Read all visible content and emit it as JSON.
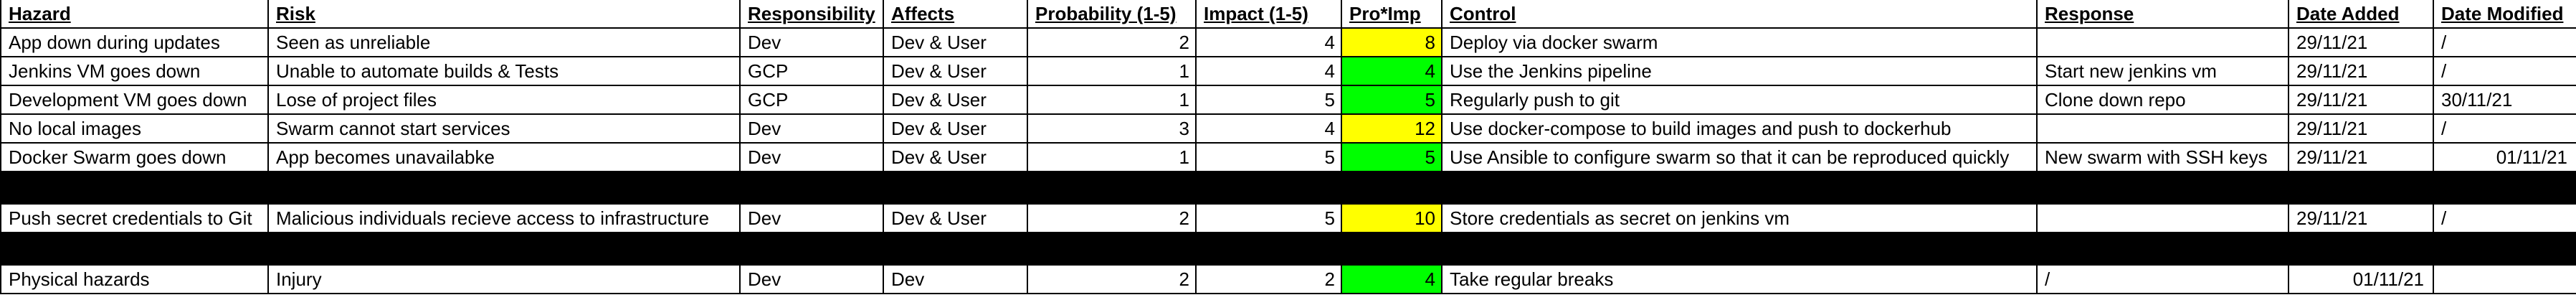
{
  "columns": [
    "Hazard",
    "Risk",
    "Responsibility",
    "Affects",
    "Probability (1-5)",
    "Impact (1-5)",
    "Pro*Imp",
    "Control",
    "Response",
    "Date Added",
    "Date Modified"
  ],
  "rows": [
    {
      "hazard": "App down during updates",
      "risk": "Seen as unreliable",
      "responsibility": "Dev",
      "affects": "Dev & User",
      "probability": "2",
      "impact": "4",
      "score": "8",
      "level": "warn",
      "control": "Deploy via docker swarm",
      "response": "",
      "date_added": "29/11/21",
      "date_modified": "/"
    },
    {
      "hazard": "Jenkins VM goes down",
      "risk": "Unable to automate builds & Tests",
      "responsibility": "GCP",
      "affects": "Dev & User",
      "probability": "1",
      "impact": "4",
      "score": "4",
      "level": "ok",
      "control": "Use the Jenkins pipeline",
      "response": "Start new jenkins vm",
      "date_added": "29/11/21",
      "date_modified": "/"
    },
    {
      "hazard": "Development VM goes down",
      "risk": "Lose of project files",
      "responsibility": "GCP",
      "affects": "Dev & User",
      "probability": "1",
      "impact": "5",
      "score": "5",
      "level": "ok",
      "control": "Regularly push to git",
      "response": "Clone down repo",
      "date_added": "29/11/21",
      "date_modified": "30/11/21"
    },
    {
      "hazard": "No local images",
      "risk": "Swarm cannot start services",
      "responsibility": "Dev",
      "affects": "Dev & User",
      "probability": "3",
      "impact": "4",
      "score": "12",
      "level": "warn",
      "control": "Use docker-compose to build images and push to dockerhub",
      "response": "",
      "date_added": "29/11/21",
      "date_modified": "/"
    },
    {
      "hazard": "Docker Swarm goes down",
      "risk": "App becomes unavailabke",
      "responsibility": "Dev",
      "affects": "Dev & User",
      "probability": "1",
      "impact": "5",
      "score": "5",
      "level": "ok",
      "control": "Use Ansible to configure swarm so that it can be reproduced quickly",
      "response": "New swarm with SSH keys",
      "date_added": "29/11/21",
      "date_modified": "01/11/21"
    },
    {
      "hazard": "Push secret credentials to Git",
      "risk": "Malicious individuals recieve access to infrastructure",
      "responsibility": "Dev",
      "affects": "Dev & User",
      "probability": "2",
      "impact": "5",
      "score": "10",
      "level": "warn",
      "control": "Store credentials as secret on jenkins vm",
      "response": "",
      "date_added": "29/11/21",
      "date_modified": "/"
    },
    {
      "hazard": "Physical hazards",
      "risk": "Injury",
      "responsibility": "Dev",
      "affects": "Dev",
      "probability": "2",
      "impact": "2",
      "score": "4",
      "level": "ok",
      "control": "Take regular breaks",
      "response": "/",
      "date_added": "01/11/21",
      "date_modified": ""
    }
  ],
  "colors": {
    "ok": "#00ff00",
    "warn": "#ffff00",
    "divider": "#000000"
  }
}
